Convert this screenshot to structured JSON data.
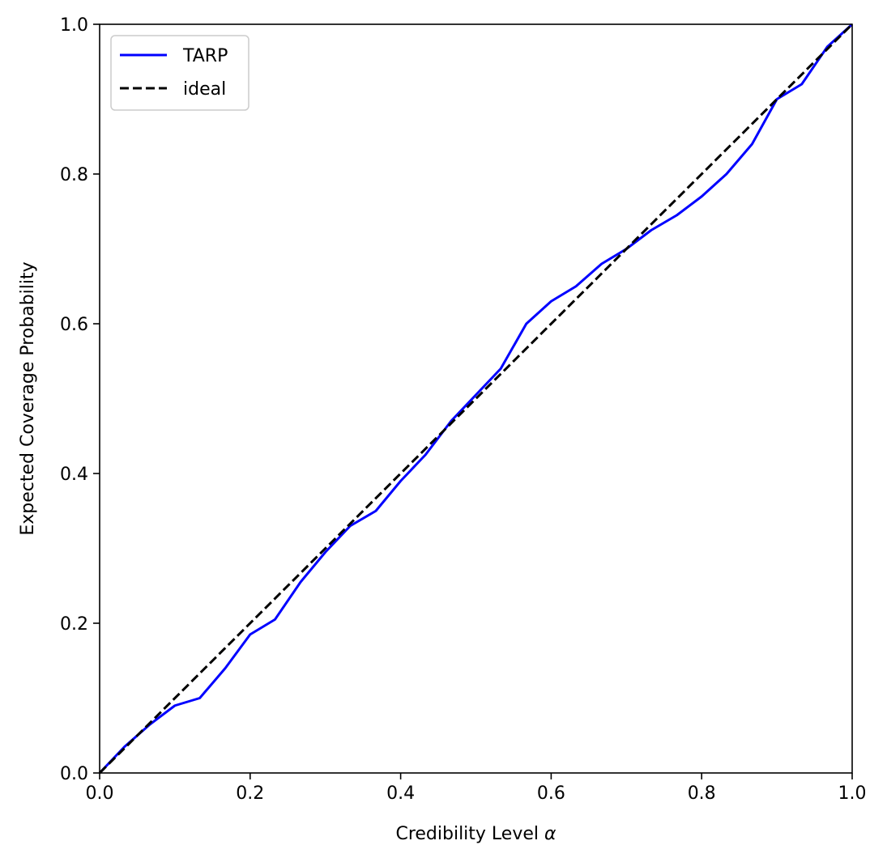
{
  "chart_data": {
    "type": "line",
    "xlabel": "Credibility Level",
    "xlabel_symbol": "α",
    "ylabel": "Expected Coverage Probability",
    "xlim": [
      0.0,
      1.0
    ],
    "ylim": [
      0.0,
      1.0
    ],
    "x_ticks": [
      "0.0",
      "0.2",
      "0.4",
      "0.6",
      "0.8",
      "1.0"
    ],
    "y_ticks": [
      "0.0",
      "0.2",
      "0.4",
      "0.6",
      "0.8",
      "1.0"
    ],
    "grid": false,
    "legend_position": "top-left",
    "series": [
      {
        "name": "TARP",
        "color": "#0000ff",
        "style": "solid",
        "x": [
          0.0,
          0.033,
          0.067,
          0.1,
          0.133,
          0.167,
          0.2,
          0.233,
          0.267,
          0.3,
          0.333,
          0.367,
          0.4,
          0.433,
          0.467,
          0.5,
          0.533,
          0.567,
          0.6,
          0.633,
          0.667,
          0.7,
          0.733,
          0.767,
          0.8,
          0.833,
          0.867,
          0.9,
          0.933,
          0.967,
          1.0
        ],
        "y": [
          0.0,
          0.035,
          0.065,
          0.09,
          0.1,
          0.14,
          0.185,
          0.205,
          0.255,
          0.295,
          0.33,
          0.35,
          0.39,
          0.425,
          0.47,
          0.505,
          0.54,
          0.6,
          0.63,
          0.65,
          0.68,
          0.7,
          0.725,
          0.745,
          0.77,
          0.8,
          0.84,
          0.9,
          0.92,
          0.97,
          1.0
        ]
      },
      {
        "name": "ideal",
        "color": "#000000",
        "style": "dashed",
        "x": [
          0.0,
          1.0
        ],
        "y": [
          0.0,
          1.0
        ]
      }
    ]
  }
}
